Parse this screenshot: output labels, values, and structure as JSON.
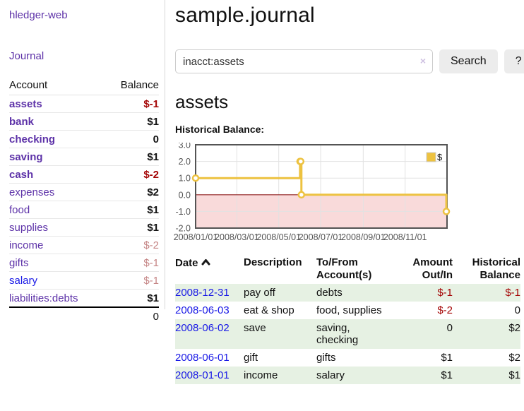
{
  "app": {
    "brand": "hledger-web"
  },
  "colors": {
    "accent_purple": "#5d32a8",
    "link_blue": "#1919e6",
    "negative": "#a40505",
    "negative_muted": "#c58585",
    "row_stripe_green": "#e6f1e3",
    "chart_series_yellow": "#edc240",
    "negative_region_pink": "#f9dada",
    "zero_line_red": "#8f1d1d",
    "button_gray": "#ececec"
  },
  "sidebar": {
    "journal_link": "Journal",
    "accounts": {
      "headers": {
        "account": "Account",
        "balance": "Balance"
      },
      "rows": [
        {
          "name": "assets",
          "balance": "$-1"
        },
        {
          "name": "bank",
          "balance": "$1"
        },
        {
          "name": "checking",
          "balance": "0"
        },
        {
          "name": "saving",
          "balance": "$1"
        },
        {
          "name": "cash",
          "balance": "$-2"
        },
        {
          "name": "expenses",
          "balance": "$2"
        },
        {
          "name": "food",
          "balance": "$1"
        },
        {
          "name": "supplies",
          "balance": "$1"
        },
        {
          "name": "income",
          "balance": "$-2"
        },
        {
          "name": "gifts",
          "balance": "$-1"
        },
        {
          "name": "salary",
          "balance": "$-1"
        },
        {
          "name": "liabilities:debts",
          "balance": "$1"
        }
      ],
      "total": "0"
    }
  },
  "header": {
    "title": "sample.journal"
  },
  "search": {
    "value": "inacct:assets",
    "clear_label": "×",
    "search_button": "Search",
    "help_button": "?"
  },
  "account_page": {
    "heading": "assets",
    "chart_label": "Historical Balance:"
  },
  "chart_data": {
    "type": "line",
    "title": "Historical Balance",
    "step": true,
    "x_range": [
      "2008-01-01",
      "2009-01-01"
    ],
    "ylim": [
      -2,
      3
    ],
    "x_ticks": [
      "2008/01/01",
      "2008/03/01",
      "2008/05/01",
      "2008/07/01",
      "2008/09/01",
      "2008/11/01"
    ],
    "y_ticks": [
      3.0,
      2.0,
      1.0,
      0.0,
      -1.0,
      -2.0
    ],
    "legend": {
      "label": "$",
      "position": "top-right"
    },
    "grid": true,
    "series": [
      {
        "name": "$",
        "color": "#edc240",
        "points": [
          {
            "date": "2008-01-01",
            "value": 1
          },
          {
            "date": "2008-06-01",
            "value": 2
          },
          {
            "date": "2008-06-02",
            "value": 2
          },
          {
            "date": "2008-06-03",
            "value": 0
          },
          {
            "date": "2008-12-31",
            "value": -1
          }
        ]
      }
    ],
    "negative_region_fill": "#f9dada",
    "zero_line_color": "#8f1d1d"
  },
  "register": {
    "headers": {
      "date": "Date",
      "description": "Description",
      "accounts": [
        "To/From",
        "Account(s)"
      ],
      "amount": [
        "Amount",
        "Out/In"
      ],
      "balance": [
        "Historical",
        "Balance"
      ]
    },
    "rows": [
      {
        "date": "2008-12-31",
        "description": "pay off",
        "accounts": "debts",
        "amount": "$-1",
        "balance": "$-1"
      },
      {
        "date": "2008-06-03",
        "description": "eat & shop",
        "accounts": "food, supplies",
        "amount": "$-2",
        "balance": "0"
      },
      {
        "date": "2008-06-02",
        "description": "save",
        "accounts": "saving,\nchecking",
        "amount": "0",
        "balance": "$2"
      },
      {
        "date": "2008-06-01",
        "description": "gift",
        "accounts": "gifts",
        "amount": "$1",
        "balance": "$2"
      },
      {
        "date": "2008-01-01",
        "description": "income",
        "accounts": "salary",
        "amount": "$1",
        "balance": "$1"
      }
    ]
  }
}
